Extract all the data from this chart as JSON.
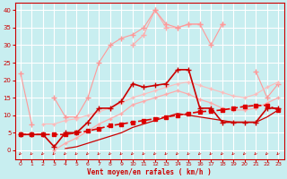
{
  "bg_color": "#c8eef0",
  "grid_color": "#ffffff",
  "xlabel": "Vent moyen/en rafales ( km/h )",
  "x": [
    0,
    1,
    2,
    3,
    4,
    5,
    6,
    7,
    8,
    9,
    10,
    11,
    12,
    13,
    14,
    15,
    16,
    17,
    18,
    19,
    20,
    21,
    22,
    23
  ],
  "ylim": [
    -2.5,
    42
  ],
  "xlim": [
    -0.5,
    23.5
  ],
  "yticks": [
    0,
    5,
    10,
    15,
    20,
    25,
    30,
    35,
    40
  ],
  "lines": [
    {
      "y": [
        null,
        null,
        null,
        null,
        null,
        null,
        null,
        null,
        null,
        null,
        30.0,
        33.0,
        40.0,
        35.0,
        35.0,
        36.0,
        36.0,
        null,
        36.0,
        null,
        null,
        null,
        null,
        null
      ],
      "color": "#ffaaaa",
      "lw": 0.8,
      "marker": "+",
      "ms": 4,
      "linestyle": "-",
      "zorder": 2
    },
    {
      "y": [
        22.0,
        7.5,
        null,
        15.0,
        9.5,
        9.5,
        15.0,
        25.0,
        30.0,
        32.0,
        33.0,
        35.0,
        40.0,
        36.0,
        35.0,
        36.0,
        36.0,
        30.0,
        36.0,
        null,
        null,
        22.5,
        15.0,
        19.0
      ],
      "color": "#ff9999",
      "lw": 0.8,
      "marker": "+",
      "ms": 4,
      "linestyle": "-",
      "zorder": 2
    },
    {
      "y": [
        null,
        null,
        7.5,
        7.5,
        8.5,
        9.0,
        10.0,
        11.0,
        12.0,
        13.5,
        15.0,
        16.0,
        17.0,
        18.0,
        19.0,
        19.5,
        18.5,
        17.5,
        16.5,
        15.5,
        15.0,
        16.0,
        18.0,
        19.5
      ],
      "color": "#ffbbbb",
      "lw": 0.8,
      "marker": "+",
      "ms": 3,
      "linestyle": "-",
      "zorder": 2
    },
    {
      "y": [
        null,
        null,
        null,
        0.0,
        2.0,
        3.5,
        5.5,
        7.5,
        9.0,
        10.5,
        13.0,
        14.0,
        15.0,
        16.0,
        17.0,
        16.0,
        14.5,
        13.5,
        12.0,
        11.5,
        11.5,
        12.0,
        13.5,
        15.0
      ],
      "color": "#ffaaaa",
      "lw": 0.9,
      "marker": "+",
      "ms": 3,
      "linestyle": "-",
      "zorder": 3
    },
    {
      "y": [
        4.5,
        4.5,
        4.5,
        4.5,
        4.5,
        5.0,
        5.5,
        6.2,
        7.0,
        7.5,
        8.0,
        8.5,
        9.0,
        9.5,
        10.0,
        10.5,
        11.0,
        11.2,
        11.5,
        12.0,
        12.5,
        12.8,
        12.8,
        11.5
      ],
      "color": "#dd0000",
      "lw": 1.2,
      "marker": "s",
      "ms": 2.5,
      "linestyle": "--",
      "zorder": 5
    },
    {
      "y": [
        4.5,
        4.5,
        4.5,
        1.0,
        5.0,
        5.0,
        8.0,
        12.0,
        12.0,
        14.0,
        19.0,
        18.0,
        18.5,
        19.0,
        23.0,
        23.0,
        12.0,
        12.0,
        8.0,
        8.0,
        8.0,
        8.0,
        12.0,
        12.0
      ],
      "color": "#cc0000",
      "lw": 1.2,
      "marker": "+",
      "ms": 5,
      "linestyle": "-",
      "zorder": 6
    },
    {
      "y": [
        null,
        null,
        null,
        null,
        0.5,
        1.0,
        2.0,
        3.0,
        4.0,
        5.0,
        6.5,
        7.5,
        8.5,
        9.5,
        10.5,
        10.0,
        9.5,
        9.0,
        8.5,
        8.0,
        8.0,
        8.0,
        9.5,
        11.5
      ],
      "color": "#cc0000",
      "lw": 0.9,
      "marker": null,
      "ms": 0,
      "linestyle": "-",
      "zorder": 4
    }
  ],
  "tick_color": "#cc0000",
  "spine_color": "#cc0000",
  "xlabel_color": "#cc0000",
  "arrow_color": "#cc0000"
}
